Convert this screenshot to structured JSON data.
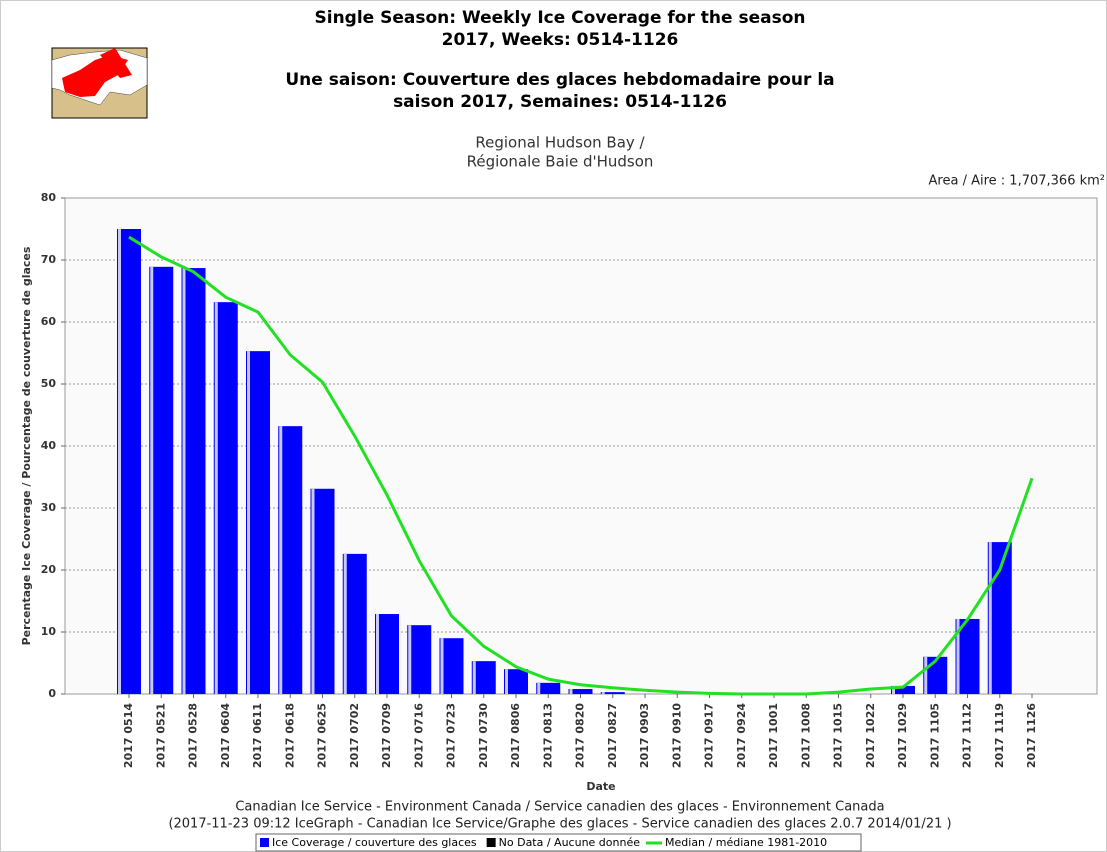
{
  "chart_data": {
    "type": "bar",
    "title_lines": [
      "Single Season: Weekly Ice Coverage for the season",
      "2017, Weeks: 0514-1126",
      "Une saison: Couverture des glaces hebdomadaire pour la",
      "saison 2017, Semaines: 0514-1126"
    ],
    "subtitle_lines": [
      "Regional Hudson Bay /",
      "Régionale Baie d'Hudson"
    ],
    "area_note": "Area / Aire : 1,707,366 km²",
    "y_label": "Percentage Ice Coverage / Pourcentage de couverture de glaces",
    "x_label": "Date",
    "footer_lines": [
      "Canadian Ice Service - Environment Canada / Service canadien des glaces - Environnement Canada",
      "(2017-11-23 09:12 IceGraph - Canadian Ice Service/Graphe des glaces - Service canadien des glaces 2.0.7 2014/01/21 )"
    ],
    "categories": [
      "2017 0514",
      "2017 0521",
      "2017 0528",
      "2017 0604",
      "2017 0611",
      "2017 0618",
      "2017 0625",
      "2017 0702",
      "2017 0709",
      "2017 0716",
      "2017 0723",
      "2017 0730",
      "2017 0806",
      "2017 0813",
      "2017 0820",
      "2017 0827",
      "2017 0903",
      "2017 0910",
      "2017 0917",
      "2017 0924",
      "2017 1001",
      "2017 1008",
      "2017 1015",
      "2017 1022",
      "2017 1029",
      "2017 1105",
      "2017 1112",
      "2017 1119",
      "2017 1126"
    ],
    "series": [
      {
        "name": "Ice Coverage / couverture des glaces",
        "color": "#0000ff",
        "kind": "bar",
        "values": [
          75.0,
          68.9,
          68.7,
          63.2,
          55.3,
          43.2,
          33.1,
          22.6,
          12.9,
          11.1,
          9.0,
          5.3,
          4.0,
          1.8,
          0.8,
          0.3,
          0,
          0,
          0,
          0,
          0,
          0,
          0,
          0,
          1.3,
          6.0,
          12.1,
          24.5,
          null
        ]
      },
      {
        "name": "Median / médiane 1981-2010",
        "color": "#22e022",
        "kind": "line",
        "values": [
          73.7,
          70.5,
          68.1,
          64.0,
          61.6,
          54.7,
          50.3,
          41.6,
          32.1,
          21.5,
          12.6,
          7.7,
          4.4,
          2.4,
          1.5,
          1.0,
          0.6,
          0.3,
          0.1,
          0.0,
          0.0,
          0.0,
          0.3,
          0.8,
          1.1,
          5.3,
          12.0,
          20.0,
          34.8
        ]
      }
    ],
    "no_data_legend": {
      "name": "No Data / Aucune donnée",
      "color": "#000000"
    },
    "ylim": [
      0,
      80
    ],
    "yticks": [
      0,
      10,
      20,
      30,
      40,
      50,
      60,
      70,
      80
    ],
    "grid": true
  }
}
